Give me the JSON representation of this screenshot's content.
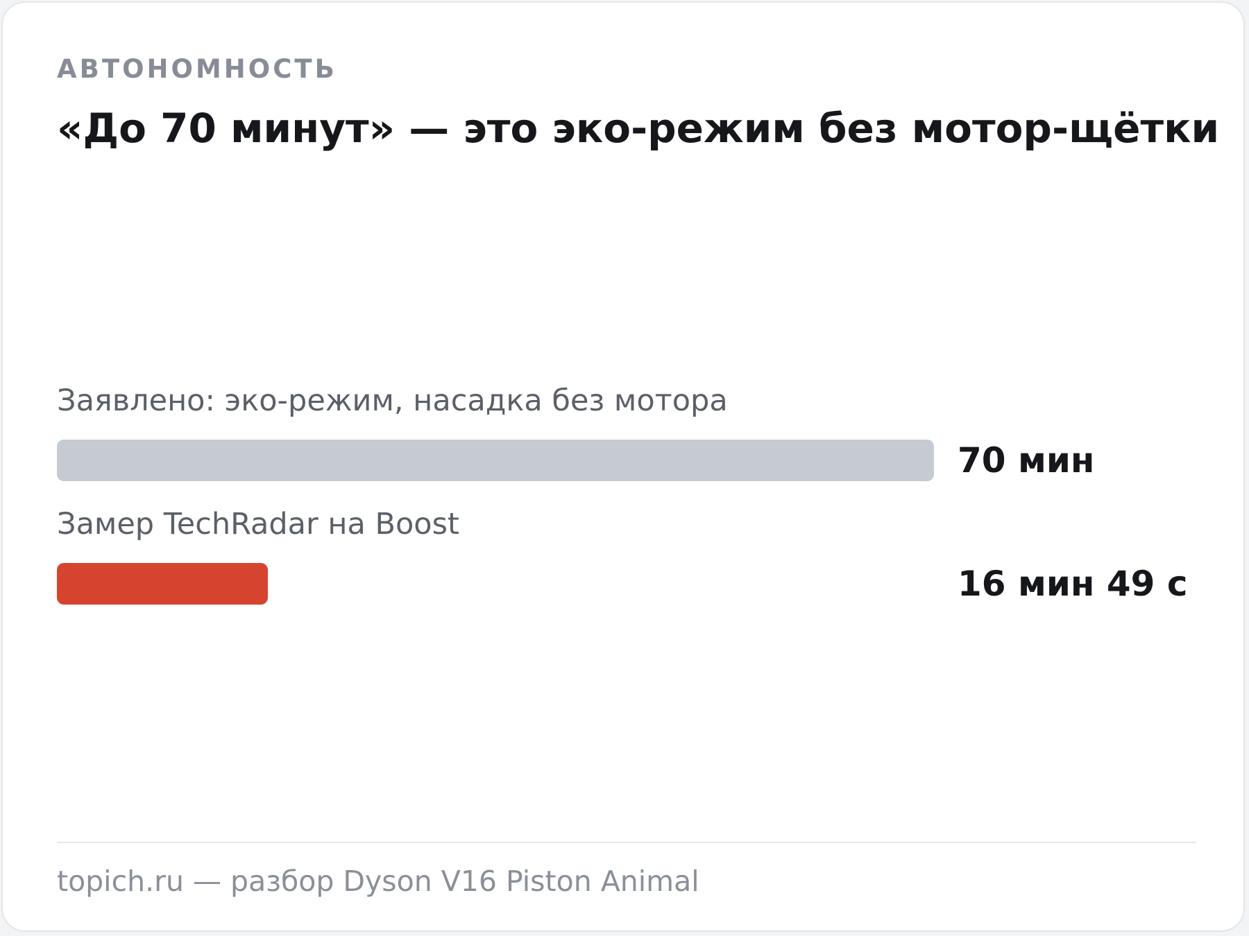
{
  "header": {
    "eyebrow": "АВТОНОМНОСТЬ",
    "title": "«До 70 минут» — это эко-режим без мотор-щётки"
  },
  "footer": {
    "text": "topich.ru — разбор Dyson V16 Piston Animal"
  },
  "chart_data": {
    "type": "bar",
    "orientation": "horizontal",
    "categories": [
      "Заявлено: эко-режим, насадка без мотора",
      "Замер TechRadar на Boost"
    ],
    "values": [
      70,
      16.82
    ],
    "unit": "мин",
    "value_labels": [
      "70 мин",
      "16 мин 49 с"
    ],
    "colors": [
      "#c6cbd2",
      "#d64430"
    ],
    "xlim": [
      0,
      70
    ],
    "grid": false,
    "legend": "none",
    "title": "«До 70 минут» — это эко-режим без мотор-щётки"
  }
}
